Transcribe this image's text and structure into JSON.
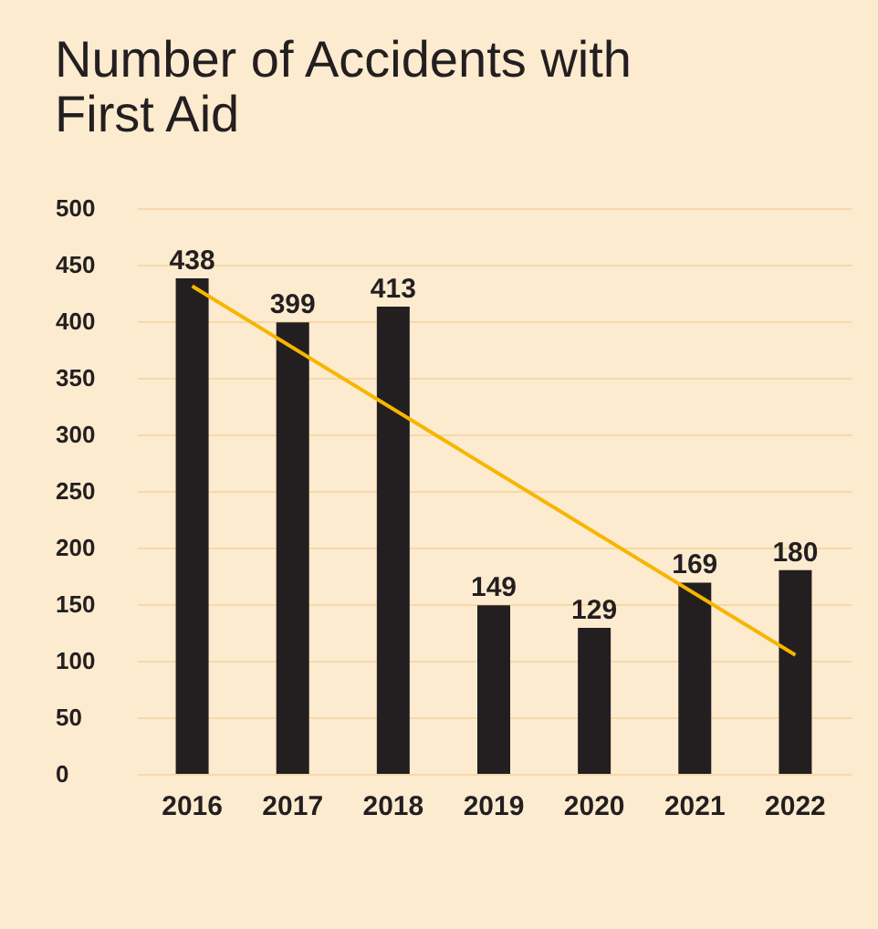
{
  "chart_data": {
    "type": "bar",
    "title": "Number of Accidents with First Aid",
    "categories": [
      "2016",
      "2017",
      "2018",
      "2019",
      "2020",
      "2021",
      "2022"
    ],
    "series": [
      {
        "color": "#231f20",
        "values": [
          438,
          399,
          413,
          149,
          129,
          169,
          180
        ],
        "value_labels": [
          "438",
          "399",
          "413",
          "149",
          "129",
          "169",
          "180"
        ]
      },
      {
        "type": "line",
        "color": "#f6b600",
        "values": [
          431,
          null,
          null,
          null,
          null,
          null,
          105
        ]
      }
    ],
    "ylim": [
      0,
      500
    ],
    "yticks": [
      0,
      50,
      100,
      150,
      200,
      250,
      300,
      350,
      400,
      450,
      500
    ],
    "grid": "y"
  }
}
